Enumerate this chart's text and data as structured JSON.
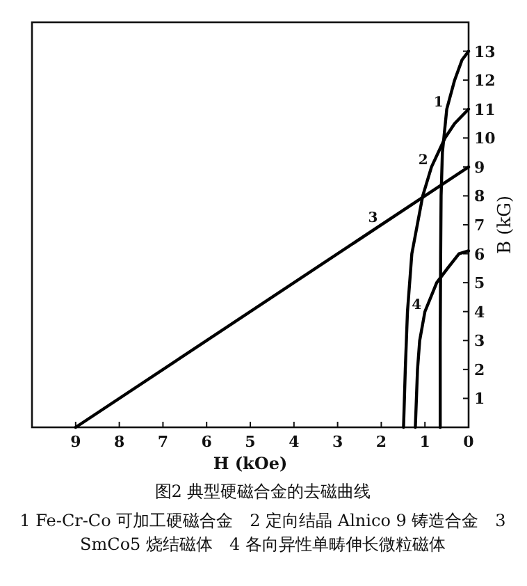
{
  "chart_data": {
    "type": "line",
    "title": "图2 典型硬磁合金的去磁曲线",
    "xlabel": "H (kOe)",
    "ylabel": "B (kG)",
    "xlim": [
      10,
      0
    ],
    "ylim": [
      0,
      14
    ],
    "xticks": [
      0,
      1,
      2,
      3,
      4,
      5,
      6,
      7,
      8,
      9
    ],
    "yticks": [
      1,
      2,
      3,
      4,
      5,
      6,
      7,
      8,
      9,
      10,
      11,
      12,
      13
    ],
    "series": [
      {
        "color": "#000000",
        "x": [
          0.65,
          0.65,
          0.64,
          0.63,
          0.6,
          0.5,
          0.32,
          0.15,
          0
        ],
        "values": [
          0,
          3,
          6,
          8,
          9.5,
          11,
          12,
          12.7,
          13
        ]
      },
      {
        "color": "#000000",
        "x": [
          1.49,
          1.45,
          1.4,
          1.3,
          1.05,
          0.85,
          0.54,
          0.32,
          0
        ],
        "values": [
          0,
          2,
          4,
          6,
          8,
          9,
          10,
          10.5,
          11
        ]
      },
      {
        "color": "#000000",
        "x": [
          9,
          0
        ],
        "values": [
          0,
          9
        ]
      },
      {
        "color": "#000000",
        "x": [
          1.22,
          1.17,
          1.12,
          1.0,
          0.73,
          0.48,
          0.22,
          0
        ],
        "values": [
          0,
          2,
          3,
          4,
          5,
          5.5,
          6,
          6.1
        ]
      }
    ],
    "annotations": [
      {
        "text": "1",
        "x": 0.5,
        "y": 11
      },
      {
        "text": "2",
        "x": 0.85,
        "y": 9
      },
      {
        "text": "3",
        "x": 2.0,
        "y": 7
      },
      {
        "text": "4",
        "x": 1.0,
        "y": 4
      },
      "1 Fe-Cr-Co 可加工硬磁合金　2 定向结晶 Alnico 9 铸造合金　3 SmCo5 烧结磁体　4 各向异性单畴伸长微粒磁体"
    ]
  }
}
